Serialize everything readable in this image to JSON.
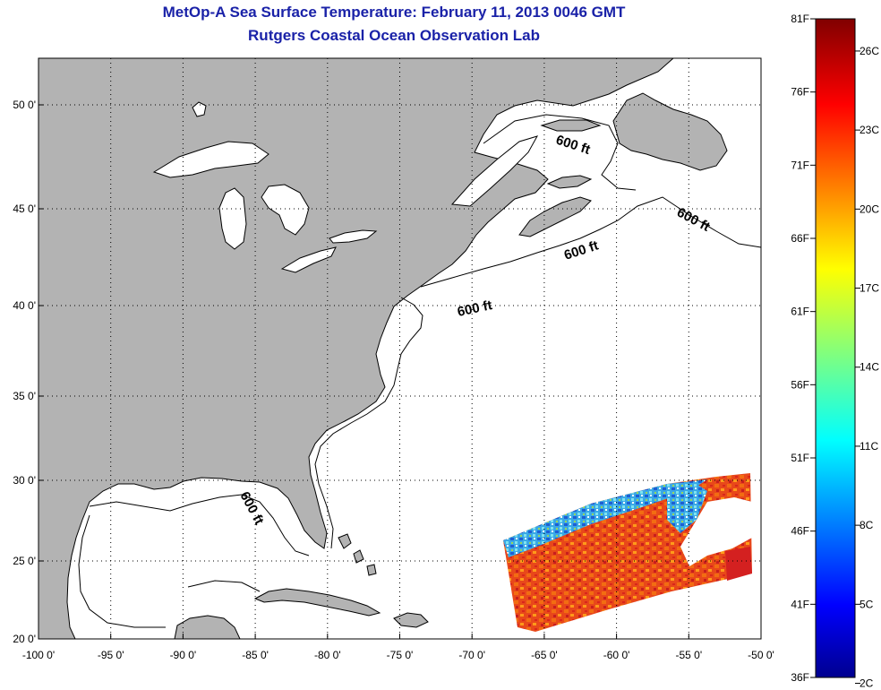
{
  "header": {
    "title": "MetOp-A Sea Surface Temperature:  February 11, 2013 0046 GMT",
    "subtitle": "Rutgers Coastal Ocean Observation Lab"
  },
  "map": {
    "lon_ticks": [
      "-100 0'",
      "-95 0'",
      "-90 0'",
      "-85 0'",
      "-80 0'",
      "-75 0'",
      "-70 0'",
      "-65 0'",
      "-60 0'",
      "-55 0'",
      "-50 0'"
    ],
    "lat_ticks": [
      "50 0'",
      "45 0'",
      "40 0'",
      "35 0'",
      "30 0'",
      "25 0'",
      "20 0'"
    ],
    "contour_labels": [
      "600 ft",
      "600 ft",
      "600 ft",
      "600 ft",
      "600 ft"
    ],
    "colors": {
      "land": "#b3b3b3",
      "ocean": "#ffffff",
      "coast": "#000000"
    }
  },
  "colorbar": {
    "fahrenheit_labels": [
      "81F",
      "76F",
      "71F",
      "66F",
      "61F",
      "56F",
      "51F",
      "46F",
      "41F",
      "36F"
    ],
    "celsius_labels": [
      "26C",
      "23C",
      "20C",
      "17C",
      "14C",
      "11C",
      "8C",
      "5C",
      "2C"
    ],
    "range_f": [
      36,
      81
    ],
    "colormap": "jet"
  }
}
